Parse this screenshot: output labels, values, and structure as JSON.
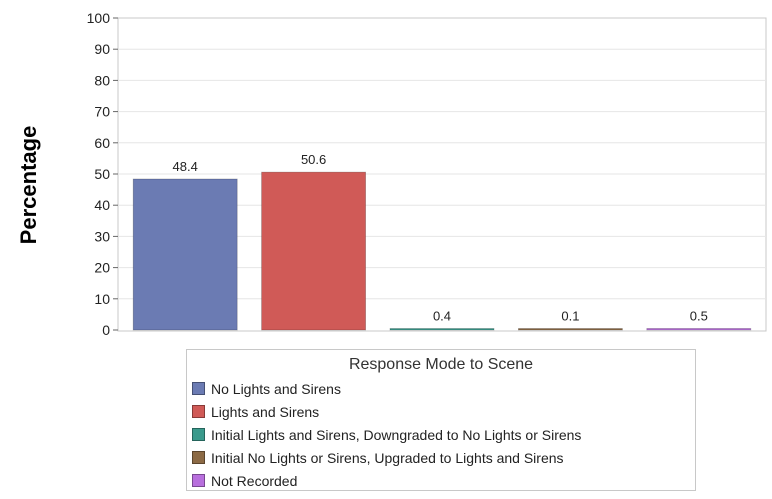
{
  "chart_data": {
    "type": "bar",
    "title": "",
    "xlabel": "",
    "ylabel": "Percentage",
    "ylim": [
      0,
      100
    ],
    "yticks": [
      0,
      10,
      20,
      30,
      40,
      50,
      60,
      70,
      80,
      90,
      100
    ],
    "grid": true,
    "categories": [
      "No Lights and Sirens",
      "Lights and Sirens",
      "Initial Lights and Sirens, Downgraded to No Lights or Sirens",
      "Initial No Lights or Sirens, Upgraded to Lights and Sirens",
      "Not Recorded"
    ],
    "values": [
      48.4,
      50.6,
      0.4,
      0.1,
      0.5
    ],
    "value_labels": [
      "48.4",
      "50.6",
      "0.4",
      "0.1",
      "0.5"
    ],
    "colors": [
      "#6b7bb3",
      "#d05a57",
      "#3a9a8c",
      "#8c6a45",
      "#b86fdd"
    ],
    "legend": {
      "title": "Response Mode to Scene",
      "placement": "bottom"
    }
  }
}
